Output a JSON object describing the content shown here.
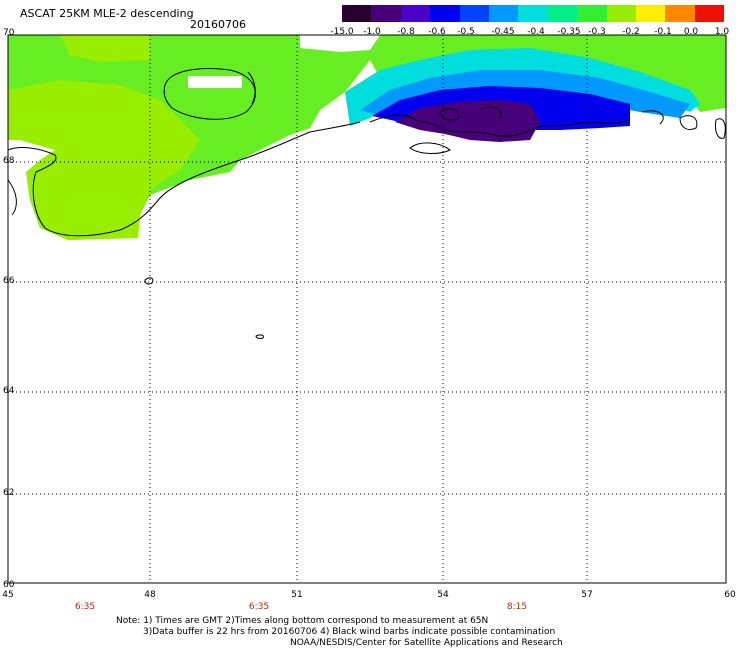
{
  "header": {
    "title": "ASCAT 25KM MLE-2 descending",
    "date": "20160706"
  },
  "colorbar": {
    "ticks": [
      "-15.0",
      "-1.0",
      "-0.8",
      "-0.6",
      "-0.5",
      "-0.45",
      "-0.4",
      "-0.35",
      "-0.3",
      "-0.2",
      "-0.1",
      "0.0",
      "1.0"
    ],
    "colors": [
      "#2a0030",
      "#48007a",
      "#4a00c8",
      "#0000ee",
      "#0044ff",
      "#0099ff",
      "#00dddd",
      "#00ee88",
      "#33ee33",
      "#99ee00",
      "#ffee00",
      "#ff8800",
      "#ee1100"
    ]
  },
  "axes": {
    "lat_labels": [
      "70",
      "68",
      "66",
      "64",
      "62",
      "60"
    ],
    "lon_labels": [
      "45",
      "48",
      "51",
      "54",
      "57",
      "60"
    ]
  },
  "times": [
    "6:35",
    "6:35",
    "8:15"
  ],
  "notes": [
    "Note: 1) Times are GMT 2)Times along bottom correspond to measurement at 65N",
    "3)Data buffer is 22 hrs from 20160706 4) Black wind barbs indicate possible contamination",
    "NOAA/NESDIS/Center for Satellite Applications and Research"
  ]
}
